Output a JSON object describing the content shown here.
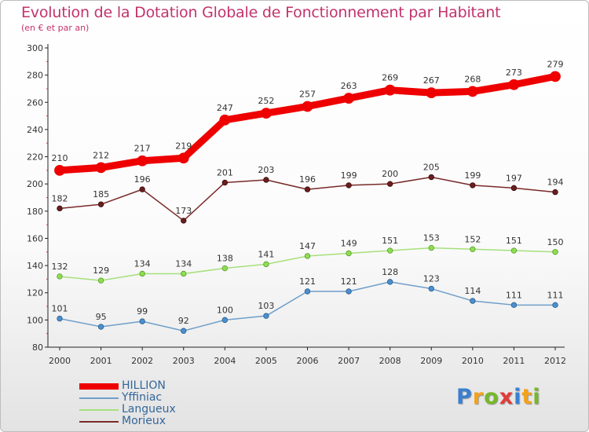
{
  "chart_data": {
    "type": "line",
    "title": "Evolution de la Dotation Globale de Fonctionnement par Habitant",
    "subtitle": "(en € et par an)",
    "x": [
      2000,
      2001,
      2002,
      2003,
      2004,
      2005,
      2006,
      2007,
      2008,
      2009,
      2010,
      2011,
      2012
    ],
    "ylim": [
      80,
      300
    ],
    "yticks": [
      80,
      100,
      120,
      140,
      160,
      180,
      200,
      220,
      240,
      260,
      280,
      300
    ],
    "grid": false,
    "legend_position": "bottom-left",
    "series": [
      {
        "name": "HILLION",
        "color": "#ee0000",
        "values": [
          210,
          212,
          217,
          219,
          247,
          252,
          257,
          263,
          269,
          267,
          268,
          273,
          279
        ]
      },
      {
        "name": "Yffiniac",
        "color": "#6f9fc9",
        "values": [
          101,
          95,
          99,
          92,
          100,
          103,
          121,
          121,
          128,
          123,
          114,
          111,
          111
        ]
      },
      {
        "name": "Langueux",
        "color": "#a6e07c",
        "values": [
          132,
          129,
          134,
          134,
          138,
          141,
          147,
          149,
          151,
          153,
          152,
          151,
          150
        ]
      },
      {
        "name": "Morieux",
        "color": "#7a2a2a",
        "values": [
          182,
          185,
          196,
          173,
          201,
          203,
          196,
          199,
          200,
          205,
          199,
          197,
          194
        ]
      }
    ]
  },
  "logo": {
    "letters": [
      "P",
      "r",
      "o",
      "x",
      "i",
      "t",
      "i"
    ],
    "colors": [
      "#3a7fd0",
      "#f2a21c",
      "#76b82a",
      "#e23a3a"
    ]
  }
}
